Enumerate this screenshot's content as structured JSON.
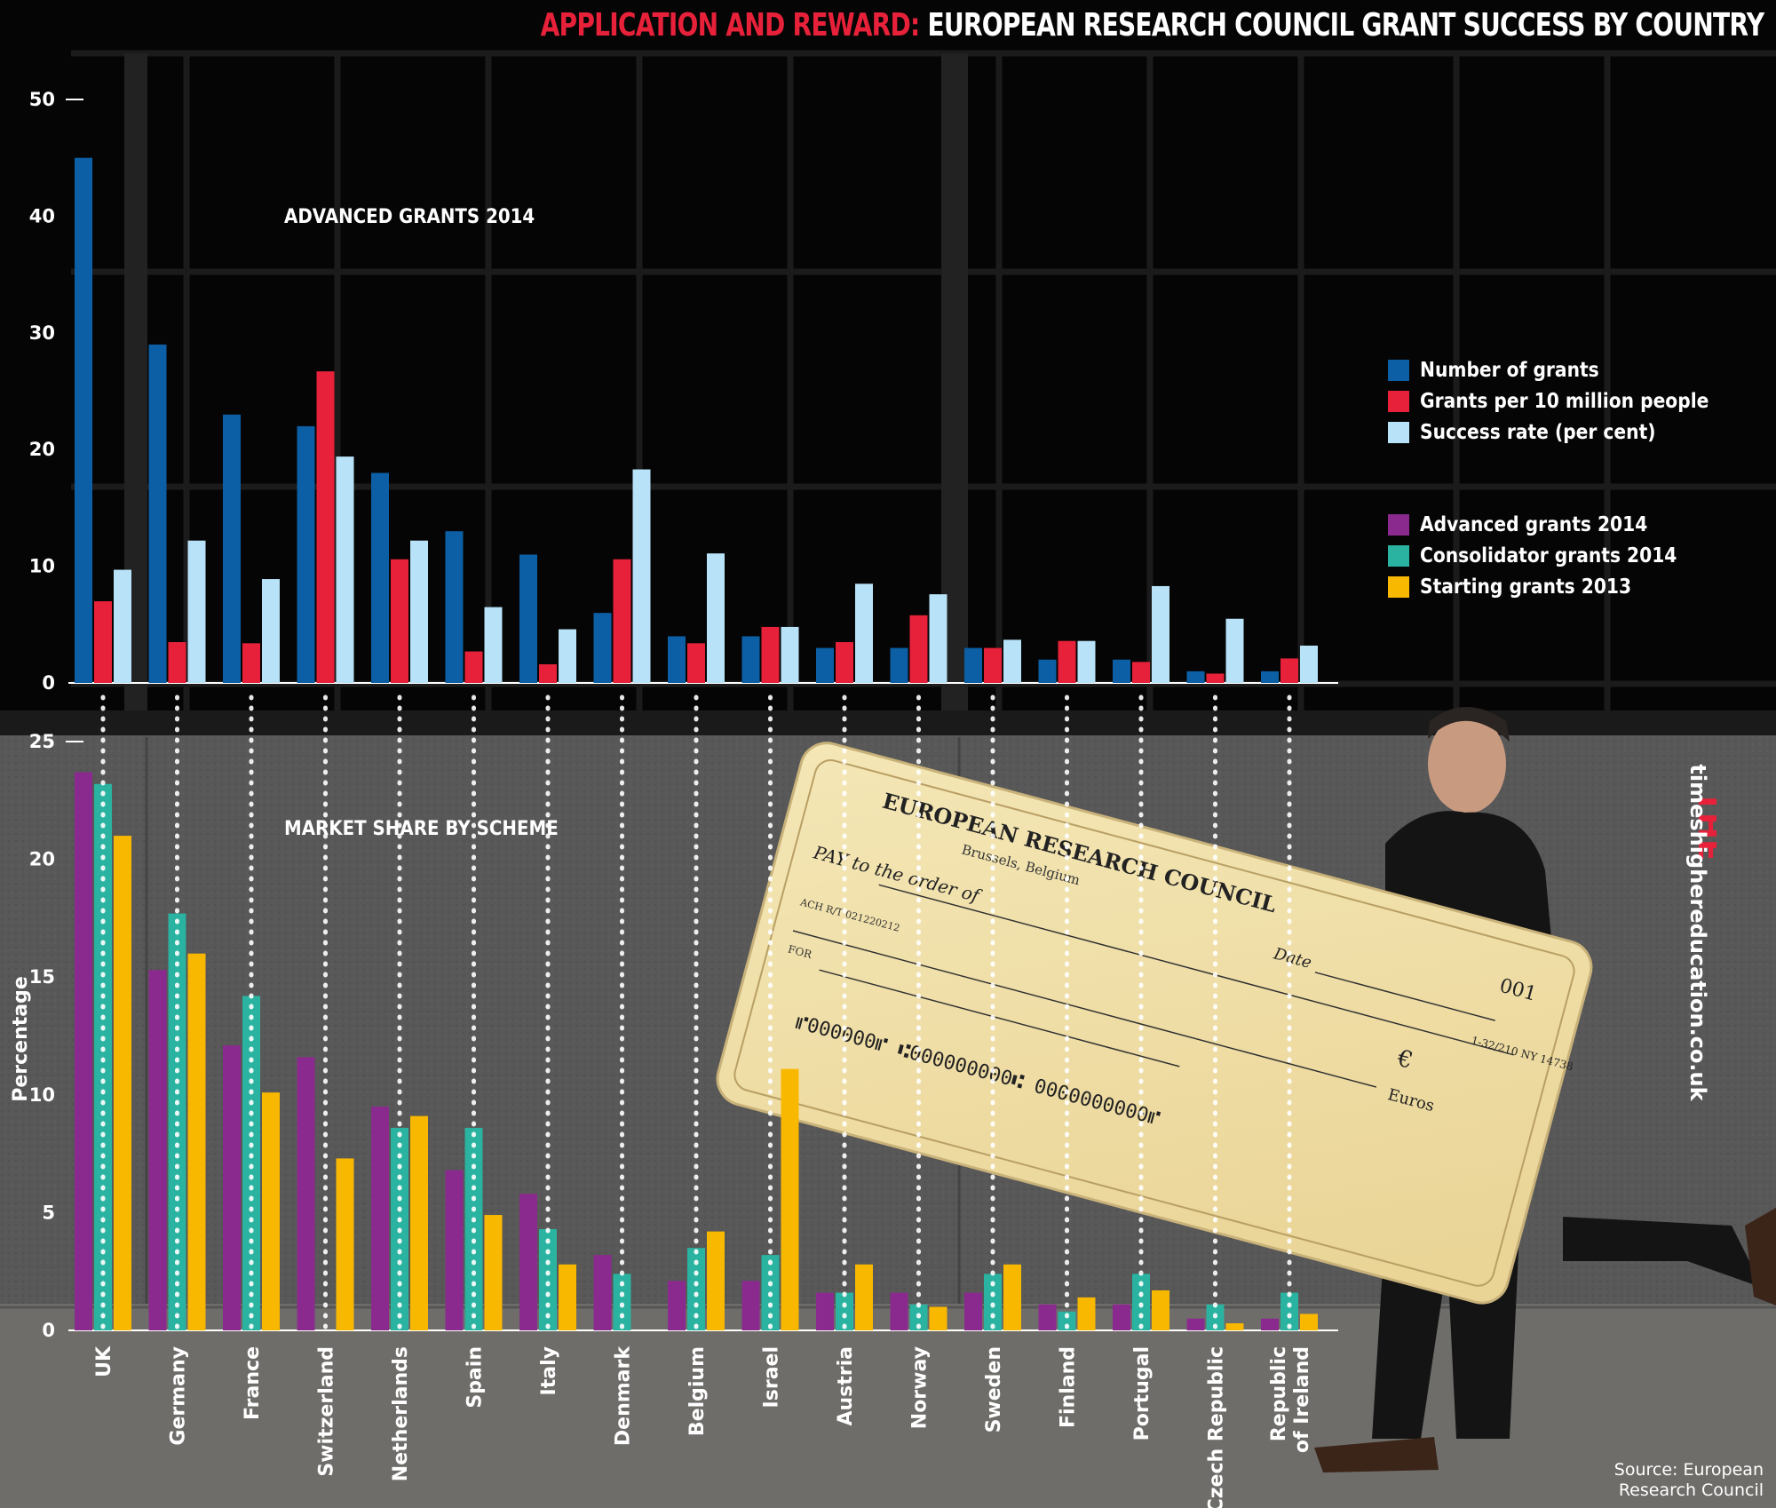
{
  "title": {
    "highlight": "APPLICATION AND  REWARD:",
    "main": "EUROPEAN RESEARCH COUNCIL GRANT SUCCESS BY COUNTRY"
  },
  "colors": {
    "number_of_grants": "#0d5fa5",
    "grants_per_10m": "#e8213a",
    "success_rate": "#b8e2f7",
    "advanced_grants": "#8b2a8e",
    "consolidator_grants": "#2ab3a0",
    "starting_grants": "#f9b800"
  },
  "legend": {
    "top": [
      {
        "label": "Number of grants",
        "color": "#0d5fa5"
      },
      {
        "label": "Grants per 10 million people",
        "color": "#e8213a"
      },
      {
        "label": "Success rate (per cent)",
        "color": "#b8e2f7"
      }
    ],
    "bottom": [
      {
        "label": "Advanced grants 2014",
        "color": "#8b2a8e"
      },
      {
        "label": "Consolidator grants 2014",
        "color": "#2ab3a0"
      },
      {
        "label": "Starting grants 2013",
        "color": "#f9b800"
      }
    ]
  },
  "cheque": {
    "issuer": "EUROPEAN RESEARCH COUNCIL",
    "address": "Brussels, Belgium",
    "pay_to": "PAY to the order of",
    "date_label": "Date",
    "number": "001",
    "currency_symbol": "€",
    "currency_word": "Euros",
    "routing": "1-32/210 NY 14738",
    "ach": "ACH R/T 021220212",
    "for_label": "FOR",
    "micr": "⑈000000⑈  ⑆000000000⑆  0000000000⑈"
  },
  "brand": {
    "logo_text": "THE",
    "url": "timeshighereducation.co.uk"
  },
  "source": {
    "line1": "Source: European",
    "line2": "Research Council"
  },
  "chart_data": [
    {
      "type": "bar",
      "title": "ADVANCED GRANTS 2014",
      "categories": [
        "UK",
        "Germany",
        "France",
        "Switzerland",
        "Netherlands",
        "Spain",
        "Italy",
        "Denmark",
        "Belgium",
        "Israel",
        "Austria",
        "Norway",
        "Sweden",
        "Finland",
        "Portugal",
        "Czech Republic",
        "Republic of Ireland"
      ],
      "series": [
        {
          "name": "Number of grants",
          "values": [
            45,
            29,
            23,
            22,
            18,
            13,
            11,
            6,
            4,
            4,
            3,
            3,
            3,
            2,
            2,
            1,
            1
          ]
        },
        {
          "name": "Grants per 10 million people",
          "values": [
            7,
            3.5,
            3.4,
            26.7,
            10.6,
            2.7,
            1.6,
            10.6,
            3.4,
            4.8,
            3.5,
            5.8,
            3.0,
            3.6,
            1.8,
            0.8,
            2.1
          ]
        },
        {
          "name": "Success rate (per cent)",
          "values": [
            9.7,
            12.2,
            8.9,
            19.4,
            12.2,
            6.5,
            4.6,
            18.3,
            11.1,
            4.8,
            8.5,
            7.6,
            3.7,
            3.6,
            8.3,
            5.5,
            3.2
          ]
        }
      ],
      "ylim": [
        0,
        50
      ],
      "yticks": [
        0,
        10,
        20,
        30,
        40,
        50
      ],
      "grid": false
    },
    {
      "type": "bar",
      "title": "MARKET SHARE BY SCHEME",
      "ylabel": "Percentage",
      "categories": [
        "UK",
        "Germany",
        "France",
        "Switzerland",
        "Netherlands",
        "Spain",
        "Italy",
        "Denmark",
        "Belgium",
        "Israel",
        "Austria",
        "Norway",
        "Sweden",
        "Finland",
        "Portugal",
        "Czech Republic",
        "Republic of Ireland"
      ],
      "category_lines": [
        [
          "UK"
        ],
        [
          "Germany"
        ],
        [
          "France"
        ],
        [
          "Switzerland"
        ],
        [
          "Netherlands"
        ],
        [
          "Spain"
        ],
        [
          "Italy"
        ],
        [
          "Denmark"
        ],
        [
          "Belgium"
        ],
        [
          "Israel"
        ],
        [
          "Austria"
        ],
        [
          "Norway"
        ],
        [
          "Sweden"
        ],
        [
          "Finland"
        ],
        [
          "Portugal"
        ],
        [
          "Czech Republic"
        ],
        [
          "Republic",
          "of Ireland"
        ]
      ],
      "series": [
        {
          "name": "Advanced grants 2014",
          "values": [
            23.7,
            15.3,
            12.1,
            11.6,
            9.5,
            6.8,
            5.8,
            3.2,
            2.1,
            2.1,
            1.6,
            1.6,
            1.6,
            1.1,
            1.1,
            0.5,
            0.5
          ]
        },
        {
          "name": "Consolidator grants 2014",
          "values": [
            23.2,
            17.7,
            14.2,
            0,
            8.6,
            8.6,
            4.3,
            2.4,
            3.5,
            3.2,
            1.6,
            1.1,
            2.4,
            0.8,
            2.4,
            1.1,
            1.6
          ]
        },
        {
          "name": "Starting grants 2013",
          "values": [
            21.0,
            16.0,
            10.1,
            7.3,
            9.1,
            4.9,
            2.8,
            0,
            4.2,
            11.1,
            2.8,
            1.0,
            2.8,
            1.4,
            1.7,
            0.3,
            0.7
          ]
        }
      ],
      "ylim": [
        0,
        25
      ],
      "yticks": [
        0,
        5,
        10,
        15,
        20,
        25
      ],
      "grid": false
    }
  ]
}
